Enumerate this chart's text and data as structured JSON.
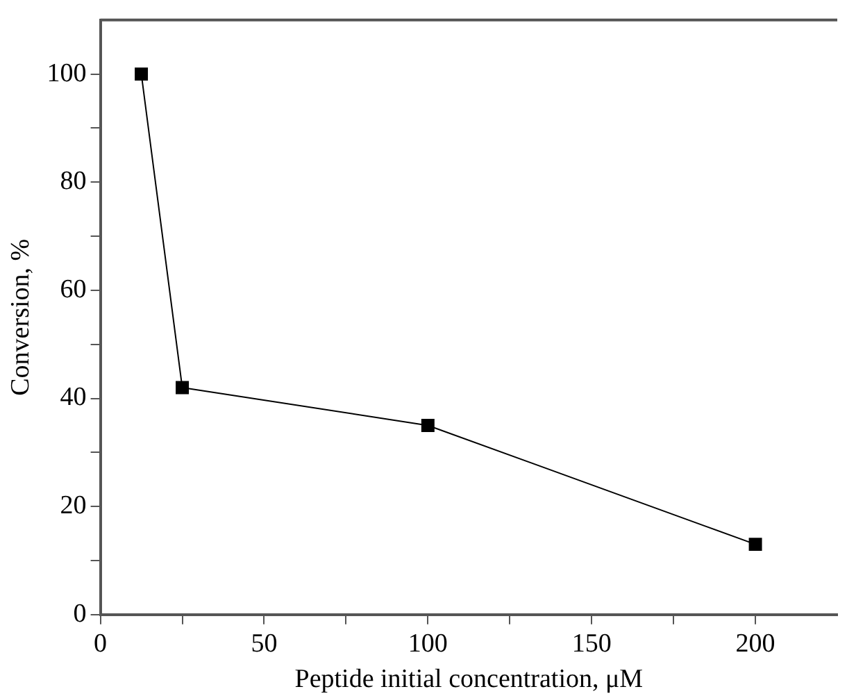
{
  "chart_data": {
    "type": "line",
    "xlabel": "Peptide initial concentration, μM",
    "ylabel": "Conversion, %",
    "x": [
      12.5,
      25,
      100,
      200
    ],
    "series": [
      {
        "color": "#000000",
        "values": [
          100,
          42,
          35,
          13
        ]
      }
    ],
    "xlim": [
      0,
      225
    ],
    "xticks": [
      0,
      {
        "value": 25,
        "label": null
      },
      50,
      {
        "value": 75,
        "label": null
      },
      100,
      {
        "value": 125,
        "label": null
      },
      150,
      {
        "value": 175,
        "label": null
      },
      200
    ],
    "ylim": [
      0,
      110
    ],
    "yticks": [
      0,
      {
        "value": 10,
        "label": null
      },
      20,
      {
        "value": 30,
        "label": null
      },
      40,
      {
        "value": 50,
        "label": null
      },
      60,
      {
        "value": 70,
        "label": null
      },
      80,
      {
        "value": 90,
        "label": null
      },
      100
    ],
    "grid": false,
    "legend": false,
    "marker": "square",
    "line_style": "solid"
  }
}
